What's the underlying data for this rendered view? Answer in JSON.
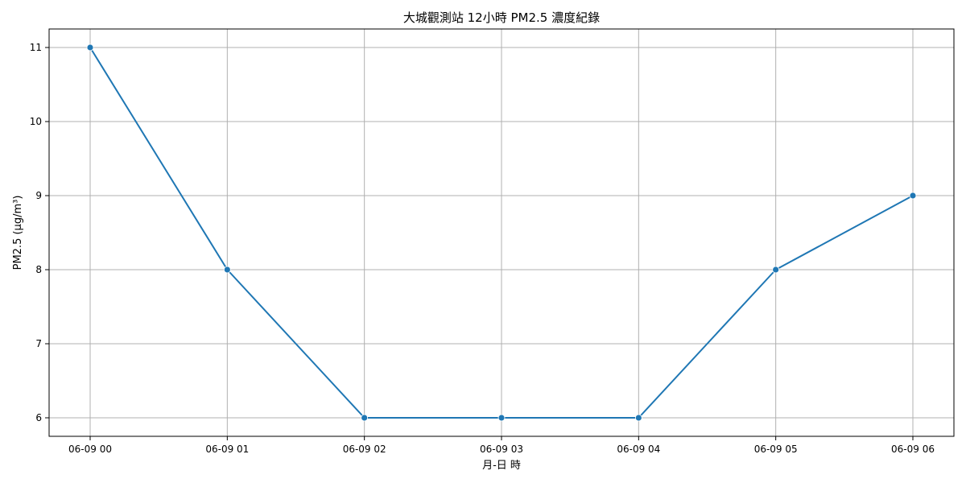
{
  "chart_data": {
    "type": "line",
    "title": "大城觀測站 12小時 PM2.5 濃度紀錄",
    "xlabel": "月-日 時",
    "ylabel": "PM2.5 (μg/m³)",
    "categories": [
      "06-09 00",
      "06-09 01",
      "06-09 02",
      "06-09 03",
      "06-09 04",
      "06-09 05",
      "06-09 06"
    ],
    "series": [
      {
        "values": [
          11,
          8,
          6,
          6,
          6,
          8,
          9
        ]
      }
    ],
    "yticks": [
      6,
      7,
      8,
      9,
      10,
      11
    ],
    "ylim": [
      5.75,
      11.25
    ],
    "grid": true,
    "legend": "none",
    "colors": {
      "line": "#1f77b4",
      "grid": "#b0b0b0",
      "axis": "#000000"
    }
  }
}
